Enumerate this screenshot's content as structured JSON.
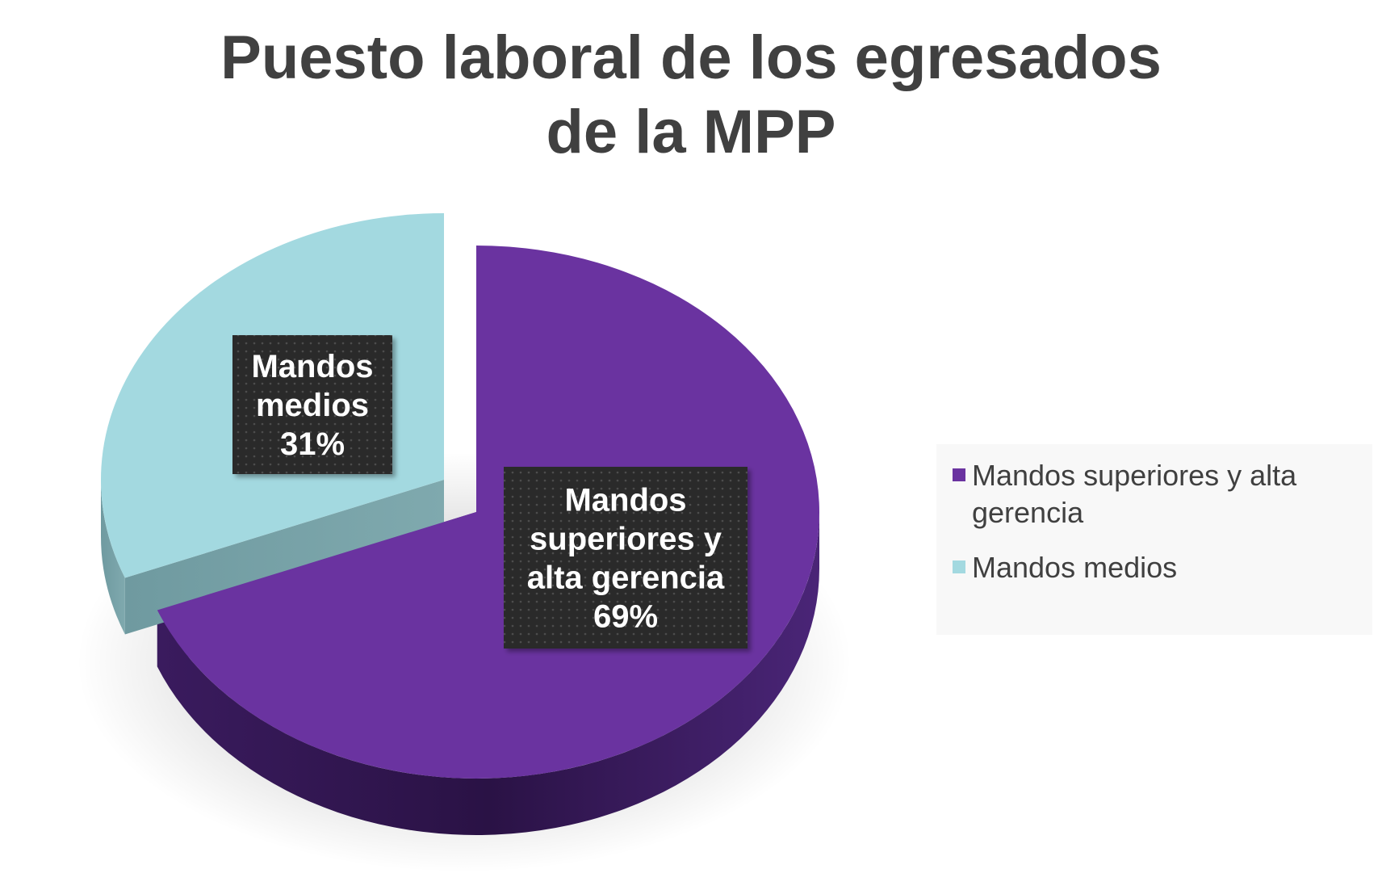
{
  "chart_data": {
    "type": "pie",
    "title_lines": [
      "Puesto laboral de los egresados",
      "de la MPP"
    ],
    "categories": [
      "Mandos superiores y alta gerencia",
      "Mandos medios"
    ],
    "values": [
      69,
      31
    ],
    "data_labels": [
      {
        "lines": [
          "Mandos",
          "superiores y",
          "alta gerencia",
          "69%"
        ]
      },
      {
        "lines": [
          "Mandos",
          "medios",
          "31%"
        ]
      }
    ],
    "colors": [
      "#6a33a0",
      "#a3d9e0"
    ],
    "exploded": true,
    "style": "3d",
    "legend": {
      "position": "right",
      "items": [
        {
          "label": "Mandos superiores y alta gerencia",
          "color": "#6a33a0"
        },
        {
          "label": "Mandos medios",
          "color": "#a3d9e0"
        }
      ]
    }
  }
}
